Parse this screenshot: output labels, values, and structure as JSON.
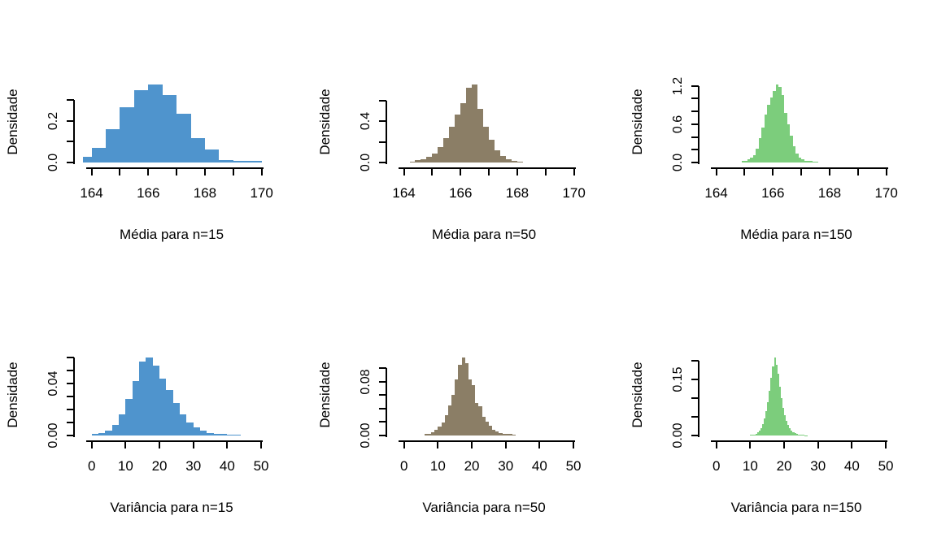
{
  "figure": {
    "background_color": "#ffffff",
    "axis_color": "#000000",
    "text_color": "#000000"
  },
  "chart_data": [
    {
      "type": "bar",
      "subtype": "histogram",
      "xlabel": "Média para n=15",
      "ylabel": "Densidade",
      "color": "#4F94CD",
      "xlim": [
        163.41,
        170.24
      ],
      "ylim": [
        0,
        0.392
      ],
      "x_ticks": [
        164,
        165,
        166,
        167,
        168,
        169,
        170
      ],
      "x_tick_labels": [
        "164",
        "",
        "166",
        "",
        "168",
        "",
        "170"
      ],
      "y_ticks": [
        0,
        0.1,
        0.2,
        0.3
      ],
      "y_tick_labels": [
        "0.0",
        "",
        "0.2",
        ""
      ],
      "breaks": [
        163.7,
        164,
        164.5,
        165,
        165.5,
        166,
        166.5,
        167,
        167.5,
        168,
        168.5,
        169,
        169.5,
        170
      ],
      "heights": [
        0.027,
        0.071,
        0.16,
        0.267,
        0.35,
        0.377,
        0.327,
        0.237,
        0.116,
        0.063,
        0.013,
        0.007,
        0.007
      ]
    },
    {
      "type": "bar",
      "subtype": "histogram",
      "xlabel": "Média para n=50",
      "ylabel": "Densidade",
      "color": "#8B7E66",
      "xlim": [
        163.41,
        170.24
      ],
      "ylim": [
        0,
        0.79
      ],
      "x_ticks": [
        164,
        165,
        166,
        167,
        168,
        169,
        170
      ],
      "x_tick_labels": [
        "164",
        "",
        "166",
        "",
        "168",
        "",
        "170"
      ],
      "y_ticks": [
        0,
        0.2,
        0.4,
        0.6
      ],
      "y_tick_labels": [
        "0.0",
        "",
        "0.4",
        ""
      ],
      "breaks": [
        164.2,
        164.4,
        164.6,
        164.8,
        165,
        165.2,
        165.4,
        165.6,
        165.8,
        166,
        166.2,
        166.4,
        166.6,
        166.8,
        167,
        167.2,
        167.4,
        167.6,
        167.8,
        168,
        168.2
      ],
      "heights": [
        0.01,
        0.02,
        0.035,
        0.055,
        0.09,
        0.15,
        0.24,
        0.35,
        0.47,
        0.58,
        0.73,
        0.76,
        0.52,
        0.35,
        0.22,
        0.12,
        0.06,
        0.03,
        0.015,
        0.008
      ]
    },
    {
      "type": "bar",
      "subtype": "histogram",
      "xlabel": "Média para n=150",
      "ylabel": "Densidade",
      "color": "#7CCD7C",
      "xlim": [
        163.41,
        170.24
      ],
      "ylim": [
        0,
        1.27
      ],
      "x_ticks": [
        164,
        165,
        166,
        167,
        168,
        169,
        170
      ],
      "x_tick_labels": [
        "164",
        "",
        "166",
        "",
        "168",
        "",
        "170"
      ],
      "y_ticks": [
        0,
        0.2,
        0.4,
        0.6,
        0.8,
        1.0,
        1.2
      ],
      "y_tick_labels": [
        "0.0",
        "",
        "",
        "0.6",
        "",
        "",
        "1.2"
      ],
      "breaks": [
        164.9,
        165,
        165.1,
        165.2,
        165.3,
        165.4,
        165.5,
        165.6,
        165.7,
        165.8,
        165.9,
        166,
        166.1,
        166.2,
        166.3,
        166.4,
        166.5,
        166.6,
        166.7,
        166.8,
        166.9,
        167,
        167.1,
        167.2,
        167.3,
        167.4,
        167.5,
        167.6
      ],
      "heights": [
        0.02,
        0.03,
        0.05,
        0.08,
        0.12,
        0.22,
        0.38,
        0.55,
        0.75,
        0.9,
        1.02,
        1.12,
        1.22,
        1.18,
        1.05,
        0.78,
        0.6,
        0.42,
        0.25,
        0.14,
        0.08,
        0.05,
        0.03,
        0.02,
        0.02,
        0.01,
        0.01
      ]
    },
    {
      "type": "bar",
      "subtype": "histogram",
      "xlabel": "Variância para n=15",
      "ylabel": "Densidade",
      "color": "#4F94CD",
      "xlim": [
        -4.97,
        52.15
      ],
      "ylim": [
        0,
        0.0625
      ],
      "x_ticks": [
        0,
        10,
        20,
        30,
        40,
        50
      ],
      "x_tick_labels": [
        "0",
        "10",
        "20",
        "30",
        "40",
        "50"
      ],
      "y_ticks": [
        0,
        0.01,
        0.02,
        0.03,
        0.04,
        0.05,
        0.06
      ],
      "y_tick_labels": [
        "0.00",
        "",
        "",
        "",
        "0.04",
        "",
        ""
      ],
      "breaks": [
        0,
        2,
        4,
        6,
        8,
        10,
        12,
        14,
        16,
        18,
        20,
        22,
        24,
        26,
        28,
        30,
        32,
        34,
        36,
        38,
        40,
        42,
        44
      ],
      "heights": [
        0.001,
        0.002,
        0.004,
        0.008,
        0.016,
        0.028,
        0.042,
        0.057,
        0.06,
        0.054,
        0.044,
        0.035,
        0.025,
        0.016,
        0.01,
        0.0065,
        0.004,
        0.002,
        0.0015,
        0.001,
        0.0008,
        0.0006
      ]
    },
    {
      "type": "bar",
      "subtype": "histogram",
      "xlabel": "Variância para n=50",
      "ylabel": "Densidade",
      "color": "#8B7E66",
      "xlim": [
        -4.97,
        52.15
      ],
      "ylim": [
        0,
        0.121
      ],
      "x_ticks": [
        0,
        10,
        20,
        30,
        40,
        50
      ],
      "x_tick_labels": [
        "0",
        "10",
        "20",
        "30",
        "40",
        "50"
      ],
      "y_ticks": [
        0,
        0.02,
        0.04,
        0.06,
        0.08,
        0.1
      ],
      "y_tick_labels": [
        "0.00",
        "",
        "",
        "",
        "0.08",
        ""
      ],
      "breaks": [
        6,
        7,
        8,
        9,
        10,
        11,
        12,
        13,
        14,
        15,
        16,
        17,
        18,
        19,
        20,
        21,
        22,
        23,
        24,
        25,
        26,
        27,
        28,
        29,
        30,
        31,
        32,
        33
      ],
      "heights": [
        0.002,
        0.003,
        0.005,
        0.008,
        0.013,
        0.019,
        0.03,
        0.045,
        0.061,
        0.083,
        0.105,
        0.116,
        0.108,
        0.084,
        0.075,
        0.048,
        0.044,
        0.028,
        0.02,
        0.015,
        0.009,
        0.006,
        0.004,
        0.003,
        0.003,
        0.002,
        0.001
      ]
    },
    {
      "type": "bar",
      "subtype": "histogram",
      "xlabel": "Variância para n=150",
      "ylabel": "Densidade",
      "color": "#7CCD7C",
      "xlim": [
        -4.97,
        52.15
      ],
      "ylim": [
        0,
        0.218
      ],
      "x_ticks": [
        0,
        10,
        20,
        30,
        40,
        50
      ],
      "x_tick_labels": [
        "0",
        "10",
        "20",
        "30",
        "40",
        "50"
      ],
      "y_ticks": [
        0,
        0.05,
        0.1,
        0.15,
        0.2
      ],
      "y_tick_labels": [
        "0.00",
        "",
        "",
        "0.15",
        ""
      ],
      "breaks": [
        10,
        10.5,
        11,
        11.5,
        12,
        12.5,
        13,
        13.5,
        14,
        14.5,
        15,
        15.5,
        16,
        16.5,
        17,
        17.5,
        18,
        18.5,
        19,
        19.5,
        20,
        20.5,
        21,
        21.5,
        22,
        22.5,
        23,
        23.5,
        24,
        24.5,
        25,
        25.5,
        26,
        26.5,
        27
      ],
      "heights": [
        0.002,
        0.002,
        0.003,
        0.005,
        0.008,
        0.012,
        0.02,
        0.03,
        0.045,
        0.065,
        0.09,
        0.12,
        0.155,
        0.185,
        0.21,
        0.19,
        0.165,
        0.13,
        0.1,
        0.075,
        0.055,
        0.04,
        0.028,
        0.02,
        0.014,
        0.009,
        0.006,
        0.004,
        0.003,
        0.003,
        0.002,
        0.002,
        0.001,
        0.001
      ]
    }
  ]
}
